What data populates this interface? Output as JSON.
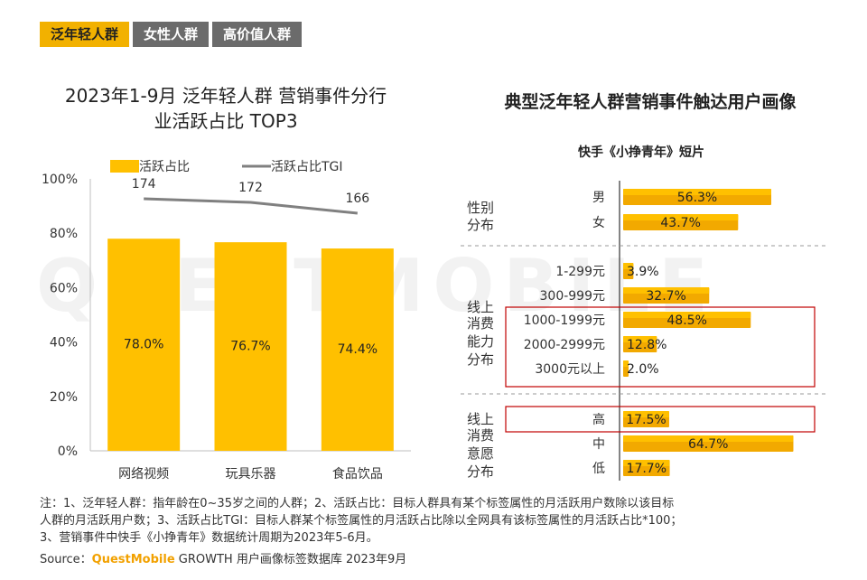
{
  "tabs": [
    {
      "label": "泛年轻人群",
      "active": true
    },
    {
      "label": "女性人群",
      "active": false
    },
    {
      "label": "高价值人群",
      "active": false
    }
  ],
  "left_title_line1": "2023年1-9月 泛年轻人群 营销事件分行",
  "left_title_line2": "业活跃占比 TOP3",
  "right_title": "典型泛年轻人群营销事件触达用户画像",
  "right_subtitle": "快手《小挣青年》短片",
  "watermark": "QUESTMOBILE",
  "notes_lines": [
    "注：1、泛年轻人群：指年龄在0~35岁之间的人群；2、活跃占比：目标人群具有某个标签属性的月活跃用户数除以该目标",
    "人群的月活跃用户数；3、活跃占比TGI：目标人群某个标签属性的月活跃占比除以全网具有该标签属性的月活跃占比*100；",
    "3、营销事件中快手《小挣青年》数据统计周期为2023年5-6月。"
  ],
  "source_prefix": "Source：",
  "source_brand": "QuestMobile",
  "source_suffix": " GROWTH 用户画像标签数据库 2023年9月",
  "colors": {
    "bar": "#ffc000",
    "bar_dark": "#f2a900",
    "line": "#808080",
    "tab_active": "#f2b100",
    "highlight": "#c00000"
  },
  "chart_data": [
    {
      "type": "bar",
      "categories": [
        "网络视频",
        "玩具乐器",
        "食品饮品"
      ],
      "series": [
        {
          "name": "活跃占比",
          "values": [
            78.0,
            76.7,
            74.4
          ],
          "labels": [
            "78.0%",
            "76.7%",
            "74.4%"
          ]
        },
        {
          "name": "活跃占比TGI",
          "type": "line",
          "values": [
            174,
            172,
            166
          ]
        }
      ],
      "ylim": [
        0,
        100
      ],
      "yticks": [
        "0%",
        "20%",
        "40%",
        "60%",
        "80%",
        "100%"
      ],
      "legend": "top"
    },
    {
      "type": "bar",
      "orientation": "horizontal",
      "groups": [
        {
          "name": [
            "性别",
            "分布"
          ],
          "items": [
            {
              "label": "男",
              "value": 56.3,
              "text": "56.3%"
            },
            {
              "label": "女",
              "value": 43.7,
              "text": "43.7%"
            }
          ]
        },
        {
          "name": [
            "线上",
            "消费",
            "能力",
            "分布"
          ],
          "items": [
            {
              "label": "1-299元",
              "value": 3.9,
              "text": "3.9%"
            },
            {
              "label": "300-999元",
              "value": 32.7,
              "text": "32.7%"
            },
            {
              "label": "1000-1999元",
              "value": 48.5,
              "text": "48.5%"
            },
            {
              "label": "2000-2999元",
              "value": 12.8,
              "text": "12.8%"
            },
            {
              "label": "3000元以上",
              "value": 2.0,
              "text": "2.0%"
            }
          ]
        },
        {
          "name": [
            "线上",
            "消费",
            "意愿",
            "分布"
          ],
          "items": [
            {
              "label": "高",
              "value": 17.5,
              "text": "17.5%"
            },
            {
              "label": "中",
              "value": 64.7,
              "text": "64.7%"
            },
            {
              "label": "低",
              "value": 17.7,
              "text": "17.7%"
            }
          ]
        }
      ],
      "highlighted": [
        "1000-1999元",
        "2000-2999元",
        "3000元以上",
        "高"
      ]
    }
  ]
}
